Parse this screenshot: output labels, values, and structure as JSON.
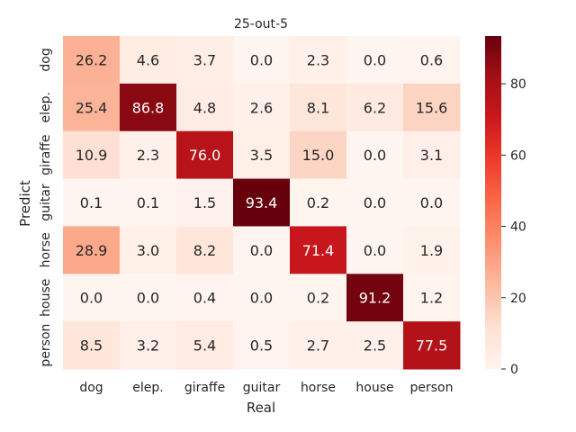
{
  "chart_data": {
    "type": "heatmap",
    "title": "25-out-5",
    "xlabel": "Real",
    "ylabel": "Predict",
    "x_categories": [
      "dog",
      "elep.",
      "giraffe",
      "guitar",
      "horse",
      "house",
      "person"
    ],
    "y_categories": [
      "dog",
      "elep.",
      "giraffe",
      "guitar",
      "horse",
      "house",
      "person"
    ],
    "values": [
      [
        26.2,
        4.6,
        3.7,
        0.0,
        2.3,
        0.0,
        0.6
      ],
      [
        25.4,
        86.8,
        4.8,
        2.6,
        8.1,
        6.2,
        15.6
      ],
      [
        10.9,
        2.3,
        76.0,
        3.5,
        15.0,
        0.0,
        3.1
      ],
      [
        0.1,
        0.1,
        1.5,
        93.4,
        0.2,
        0.0,
        0.0
      ],
      [
        28.9,
        3.0,
        8.2,
        0.0,
        71.4,
        0.0,
        1.9
      ],
      [
        0.0,
        0.0,
        0.4,
        0.0,
        0.2,
        91.2,
        1.2
      ],
      [
        8.5,
        3.2,
        5.4,
        0.5,
        2.7,
        2.5,
        77.5
      ]
    ],
    "value_labels": [
      [
        "26.2",
        "4.6",
        "3.7",
        "0.0",
        "2.3",
        "0.0",
        "0.6"
      ],
      [
        "25.4",
        "86.8",
        "4.8",
        "2.6",
        "8.1",
        "6.2",
        "15.6"
      ],
      [
        "10.9",
        "2.3",
        "76.0",
        "3.5",
        "15.0",
        "0.0",
        "3.1"
      ],
      [
        "0.1",
        "0.1",
        "1.5",
        "93.4",
        "0.2",
        "0.0",
        "0.0"
      ],
      [
        "28.9",
        "3.0",
        "8.2",
        "0.0",
        "71.4",
        "0.0",
        "1.9"
      ],
      [
        "0.0",
        "0.0",
        "0.4",
        "0.0",
        "0.2",
        "91.2",
        "1.2"
      ],
      [
        "8.5",
        "3.2",
        "5.4",
        "0.5",
        "2.7",
        "2.5",
        "77.5"
      ]
    ],
    "colorbar": {
      "colormap": "Reds",
      "range": [
        0,
        93.4
      ],
      "ticks": [
        0,
        20,
        40,
        60,
        80
      ]
    },
    "grid": false,
    "legend": "colorbar-right"
  }
}
